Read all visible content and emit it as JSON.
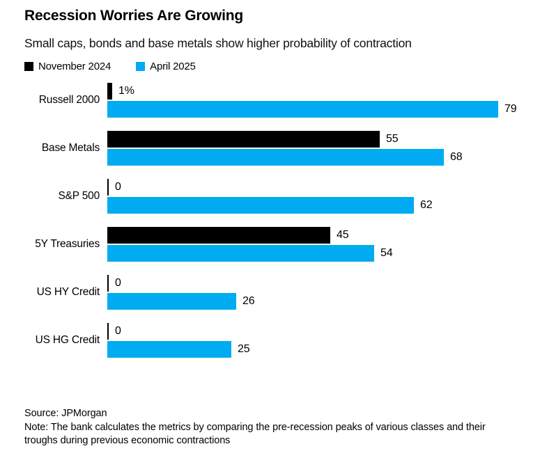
{
  "title": "Recession Worries Are Growing",
  "subtitle": "Small caps, bonds and base metals show higher probability of contraction",
  "legend": [
    {
      "label": "November 2024",
      "color": "#000000"
    },
    {
      "label": "April 2025",
      "color": "#00ABF2"
    }
  ],
  "source": "Source: JPMorgan",
  "note": "Note: The bank calculates the metrics by comparing the pre-recession peaks of various classes and their troughs during previous economic contractions",
  "colors": {
    "november_2024": "#000000",
    "april_2025": "#00ABF2",
    "background": "#ffffff",
    "text": "#000000"
  },
  "chart_data": {
    "type": "bar",
    "orientation": "horizontal",
    "title": "Recession Worries Are Growing",
    "subtitle": "Small caps, bonds and base metals show higher probability of contraction",
    "unit": "% probability of contraction",
    "categories": [
      "Russell 2000",
      "Base Metals",
      "S&P 500",
      "5Y Treasuries",
      "US HY Credit",
      "US HG Credit"
    ],
    "series": [
      {
        "name": "November 2024",
        "color": "#000000",
        "values": [
          1,
          55,
          0,
          45,
          0,
          0
        ],
        "labels": [
          "1%",
          "55",
          "0",
          "45",
          "0",
          "0"
        ]
      },
      {
        "name": "April 2025",
        "color": "#00ABF2",
        "values": [
          79,
          68,
          62,
          54,
          26,
          25
        ],
        "labels": [
          "79",
          "68",
          "62",
          "54",
          "26",
          "25"
        ]
      }
    ],
    "xlim": [
      0,
      79
    ],
    "grid": false,
    "legend_position": "top",
    "value_labels": "outside-end"
  }
}
